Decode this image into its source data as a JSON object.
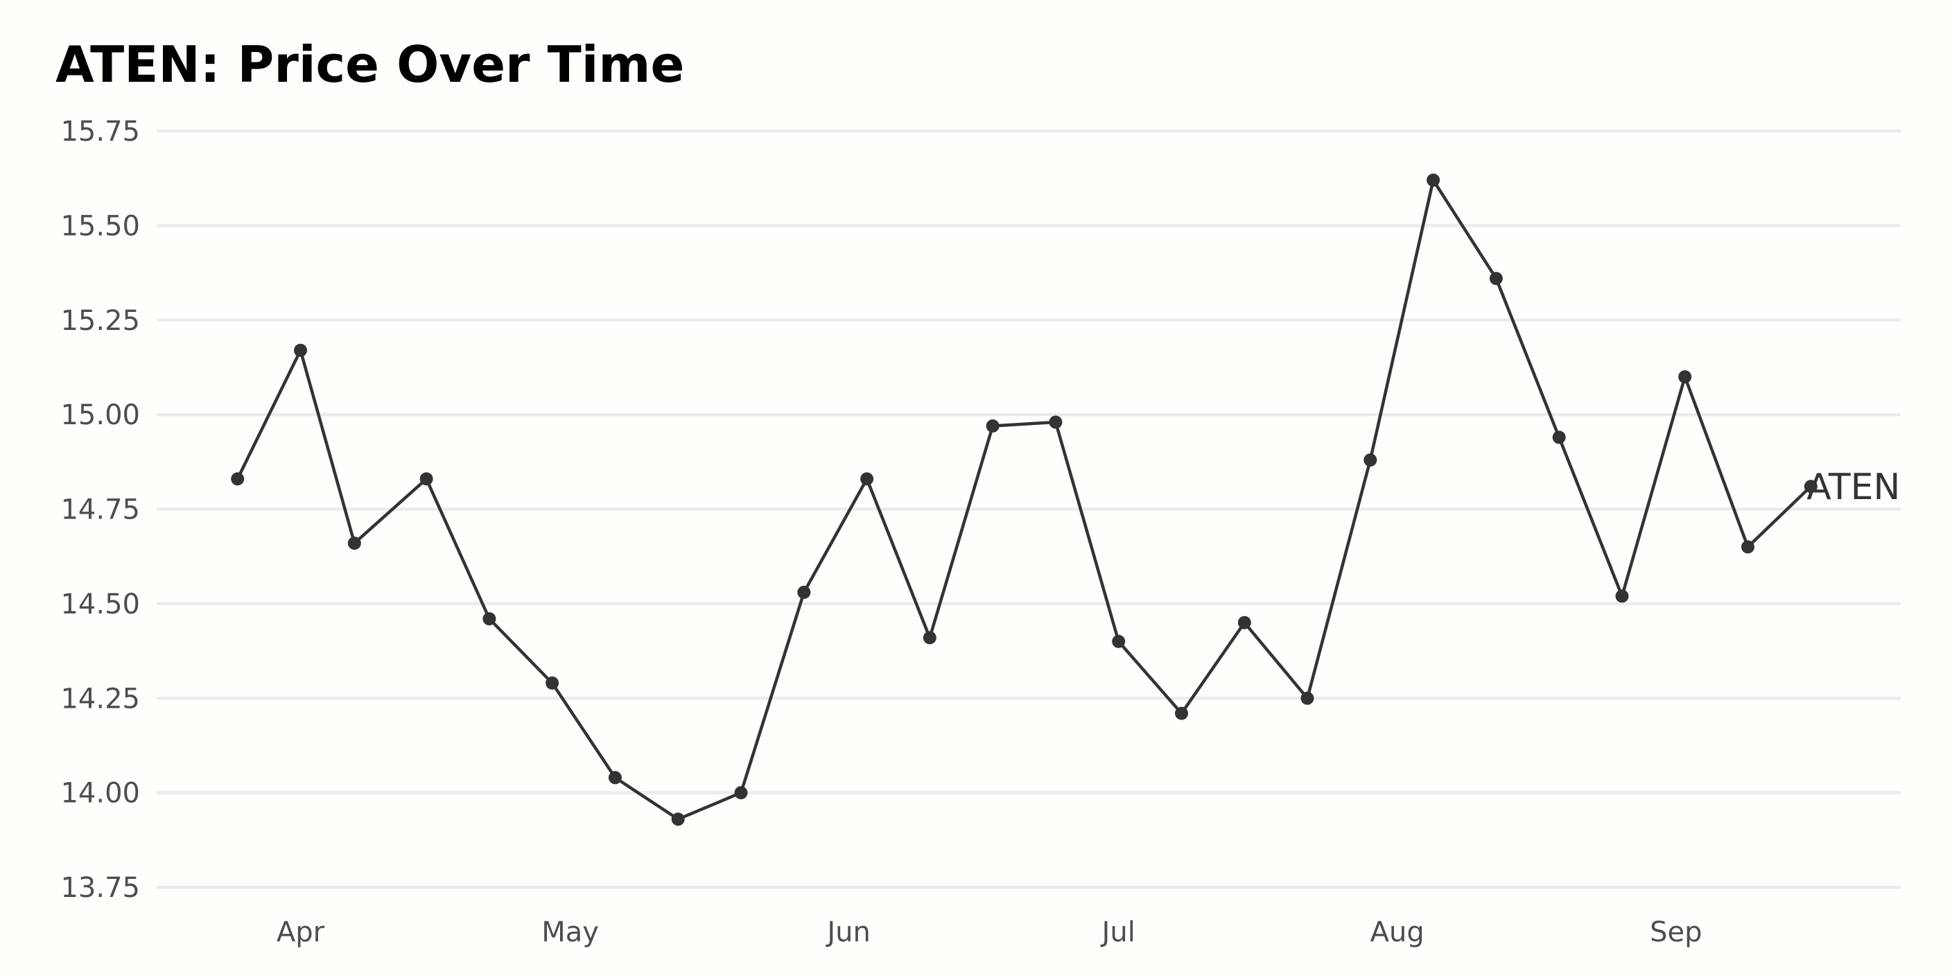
{
  "chart_data": {
    "type": "line",
    "title": "ATEN: Price Over Time",
    "xlabel": "",
    "ylabel": "",
    "ylim": [
      13.75,
      15.75
    ],
    "xlim": [
      "2024-03-16",
      "2024-09-26"
    ],
    "yticks": [
      "13.75",
      "14.00",
      "14.25",
      "14.50",
      "14.75",
      "15.00",
      "15.25",
      "15.50",
      "15.75"
    ],
    "xticks": [
      {
        "date": "2024-04-01",
        "label": "Apr"
      },
      {
        "date": "2024-05-01",
        "label": "May"
      },
      {
        "date": "2024-06-01",
        "label": "Jun"
      },
      {
        "date": "2024-07-01",
        "label": "Jul"
      },
      {
        "date": "2024-08-01",
        "label": "Aug"
      },
      {
        "date": "2024-09-01",
        "label": "Sep"
      }
    ],
    "grid": {
      "horizontal": true,
      "vertical": false
    },
    "legend": "none",
    "series": [
      {
        "name": "ATEN",
        "color": "#333333",
        "x": [
          "2024-03-25",
          "2024-04-01",
          "2024-04-07",
          "2024-04-15",
          "2024-04-22",
          "2024-04-29",
          "2024-05-06",
          "2024-05-13",
          "2024-05-20",
          "2024-05-27",
          "2024-06-03",
          "2024-06-10",
          "2024-06-17",
          "2024-06-24",
          "2024-07-01",
          "2024-07-08",
          "2024-07-15",
          "2024-07-22",
          "2024-07-29",
          "2024-08-05",
          "2024-08-12",
          "2024-08-19",
          "2024-08-26",
          "2024-09-02",
          "2024-09-09",
          "2024-09-16"
        ],
        "values": [
          14.83,
          15.17,
          14.66,
          14.83,
          14.46,
          14.29,
          14.04,
          13.93,
          14.0,
          14.53,
          14.83,
          14.41,
          14.97,
          14.98,
          14.4,
          14.21,
          14.45,
          14.25,
          14.88,
          15.62,
          15.36,
          14.94,
          14.52,
          15.1,
          14.65,
          14.81
        ]
      }
    ]
  }
}
